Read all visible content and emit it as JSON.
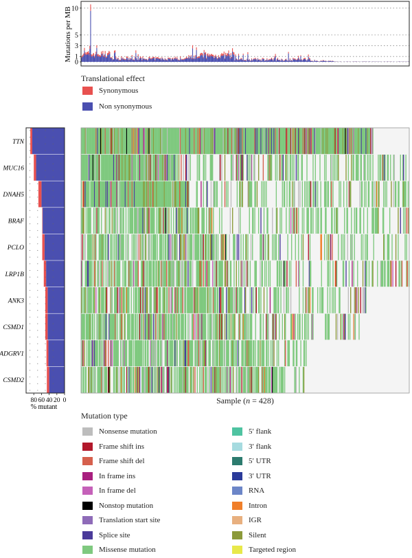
{
  "chart_data": [
    {
      "type": "bar",
      "ylabel": "Mutations per MB",
      "yticks": [
        "0",
        "1",
        "3",
        "5",
        "10"
      ],
      "ylim": [
        0,
        11
      ],
      "n_samples": 428,
      "peaks": [
        {
          "sample": 12,
          "synonymous": 1.2,
          "non_synonymous": 9.5
        },
        {
          "sample": 11,
          "synonymous": 0.6,
          "non_synonymous": 2.4
        },
        {
          "sample": 4,
          "synonymous": 0.5,
          "non_synonymous": 2.1
        },
        {
          "sample": 20,
          "synonymous": 0.5,
          "non_synonymous": 2.6
        },
        {
          "sample": 145,
          "synonymous": 0.6,
          "non_synonymous": 2.5
        },
        {
          "sample": 150,
          "synonymous": 0.5,
          "non_synonymous": 2.2
        },
        {
          "sample": 160,
          "synonymous": 0.4,
          "non_synonymous": 1.8
        },
        {
          "sample": 205,
          "synonymous": 0.3,
          "non_synonymous": 1.2
        }
      ],
      "legend": {
        "title": "Translational effect",
        "items": [
          {
            "label": "Synonymous",
            "color": "#e8514f"
          },
          {
            "label": "Non synonymous",
            "color": "#4a4fb0"
          }
        ]
      }
    },
    {
      "type": "bar",
      "orientation": "horizontal",
      "xlabel": "% mutant",
      "xticks": [
        "80",
        "60",
        "40",
        "20",
        "0"
      ],
      "xlim": [
        100,
        0
      ],
      "genes": [
        "TTN",
        "MUC16",
        "DNAH5",
        "BRAF",
        "PCLO",
        "LRP1B",
        "ANK3",
        "CSMD1",
        "ADGRV1",
        "CSMD2"
      ],
      "non_synonymous": [
        84,
        74,
        60,
        57,
        52,
        48,
        44,
        44,
        42,
        40
      ],
      "synonymous": [
        5,
        6,
        8,
        1,
        6,
        6,
        6,
        6,
        5,
        6
      ],
      "colors": {
        "synonymous": "#e8514f",
        "non_synonymous": "#4a4fb0"
      }
    },
    {
      "type": "heatmap",
      "xlabel_prefix": "Sample (",
      "xlabel_var": "n",
      "xlabel_suffix": " = 428)",
      "rows": [
        "TTN",
        "MUC16",
        "DNAH5",
        "BRAF",
        "PCLO",
        "LRP1B",
        "ANK3",
        "CSMD1",
        "ADGRV1",
        "CSMD2"
      ],
      "mutated_fraction": [
        0.89,
        0.8,
        0.68,
        0.58,
        0.58,
        0.54,
        0.5,
        0.5,
        0.47,
        0.46
      ],
      "legend": {
        "title": "Mutation type",
        "items": [
          {
            "label": "Nonsense mutation",
            "color": "#bdbdbd"
          },
          {
            "label": "Frame shift ins",
            "color": "#b2182b"
          },
          {
            "label": "Frame shift del",
            "color": "#d6604d"
          },
          {
            "label": "In frame ins",
            "color": "#a8207f"
          },
          {
            "label": "In frame del",
            "color": "#c561b9"
          },
          {
            "label": "Nonstop mutation",
            "color": "#000000"
          },
          {
            "label": "Translation start site",
            "color": "#8e6bb8"
          },
          {
            "label": "Splice site",
            "color": "#4b3b9a"
          },
          {
            "label": "Missense mutation",
            "color": "#7fc97f"
          },
          {
            "label": "5′ flank",
            "color": "#4fc3a1"
          },
          {
            "label": "3′ flank",
            "color": "#a6dbe0"
          },
          {
            "label": "5′ UTR",
            "color": "#2c7b6e"
          },
          {
            "label": "3′ UTR",
            "color": "#2b3b9a"
          },
          {
            "label": "RNA",
            "color": "#6c86c8"
          },
          {
            "label": "Intron",
            "color": "#f07f2a"
          },
          {
            "label": "IGR",
            "color": "#e8b07f"
          },
          {
            "label": "Silent",
            "color": "#8c9a3a"
          },
          {
            "label": "Targeted region",
            "color": "#e8e84a"
          }
        ]
      }
    }
  ]
}
